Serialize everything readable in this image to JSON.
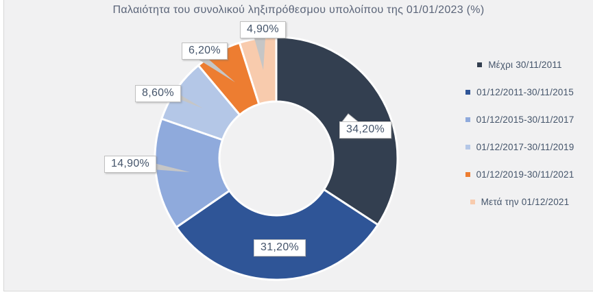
{
  "title": "Παλαιότητα του συνολικού ληξιπρόθεσμου υπολοίπου της 01/01/2023 (%)",
  "chart_data": {
    "type": "pie",
    "subtype": "donut",
    "title": "Παλαιότητα του συνολικού ληξιπρόθεσμου υπολοίπου της 01/01/2023 (%)",
    "categories": [
      "Μέχρι 30/11/2011",
      "01/12/2011-30/11/2015",
      "01/12/2015-30/11/2017",
      "01/12/2017-30/11/2019",
      "01/12/2019-30/11/2021",
      "Μετά την 01/12/2021"
    ],
    "values": [
      34.2,
      31.2,
      14.9,
      8.6,
      6.2,
      4.9
    ],
    "labels": [
      "34,20%",
      "31,20%",
      "14,90%",
      "8,60%",
      "6,20%",
      "4,90%"
    ],
    "colors": [
      "#333F50",
      "#2F5597",
      "#8FAADC",
      "#B4C7E7",
      "#ED7D31",
      "#F8CBAD"
    ],
    "start_angle_deg": 0,
    "direction": "clockwise",
    "hole_ratio": 0.47,
    "legend_position": "right",
    "background": "#F1F1F2",
    "slice_border_color": "#FFFFFF",
    "label_text_color": "#44546A"
  }
}
